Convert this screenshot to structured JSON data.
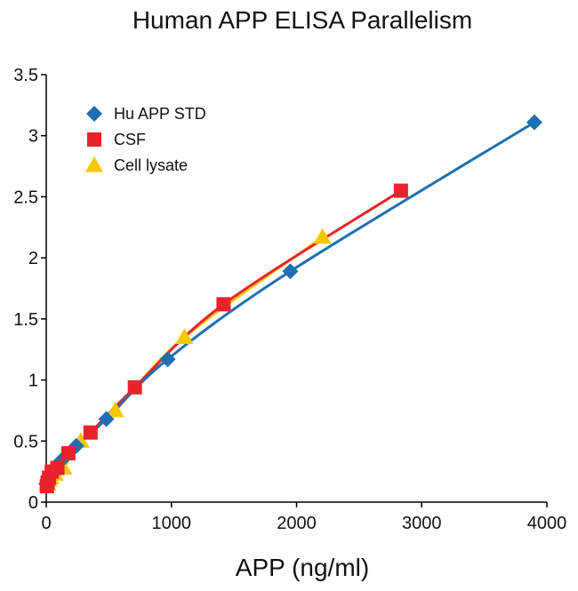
{
  "chart_data": {
    "type": "scatter",
    "title": "Human APP ELISA Parallelism",
    "xlabel": "APP (ng/ml)",
    "ylabel": "",
    "xlim": [
      0,
      4000
    ],
    "ylim": [
      0,
      3.5
    ],
    "x_ticks": [
      "0",
      "1000",
      "2000",
      "3000",
      "4000"
    ],
    "y_ticks": [
      "0",
      "0.5",
      "1",
      "1.5",
      "2",
      "2.5",
      "3",
      "3.5"
    ],
    "grid": false,
    "legend_position": "top-left",
    "series": [
      {
        "name": "Hu APP STD",
        "marker": "diamond",
        "color": "#1f6fb2",
        "x": [
          0,
          15,
          30,
          60,
          120,
          240,
          480,
          970,
          1950,
          3900
        ],
        "y": [
          0.15,
          0.18,
          0.21,
          0.26,
          0.34,
          0.46,
          0.68,
          1.17,
          1.89,
          3.11
        ]
      },
      {
        "name": "CSF",
        "marker": "square",
        "color": "#e8232a",
        "x": [
          5,
          11,
          22,
          44,
          89,
          177,
          354,
          708,
          1417,
          2834
        ],
        "y": [
          0.13,
          0.16,
          0.2,
          0.25,
          0.28,
          0.4,
          0.57,
          0.94,
          1.62,
          2.55
        ]
      },
      {
        "name": "Cell lysate",
        "marker": "triangle",
        "color": "#f5c800",
        "x": [
          9,
          17,
          35,
          69,
          138,
          276,
          552,
          1104,
          2208
        ],
        "y": [
          0.15,
          0.18,
          0.2,
          0.23,
          0.28,
          0.5,
          0.75,
          1.35,
          2.17
        ]
      }
    ]
  }
}
